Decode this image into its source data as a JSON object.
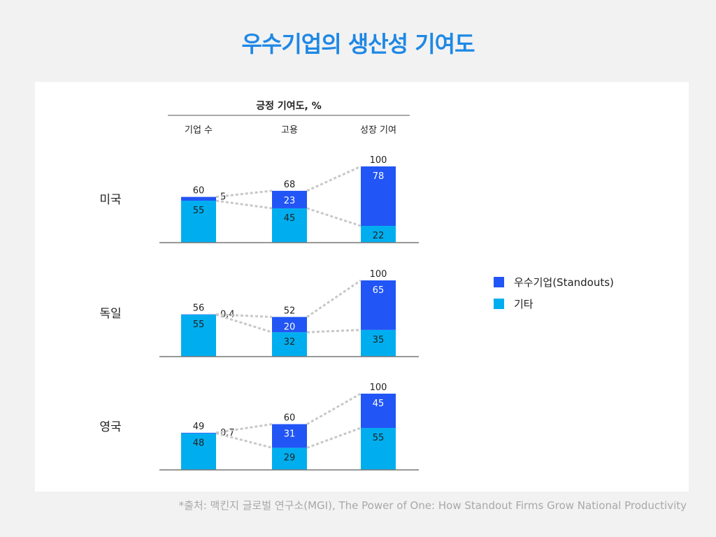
{
  "title": "우수기업의 생산성 기여도",
  "source": "*출처: 맥킨지 글로벌 연구소(MGI), The Power of One: How Standout Firms Grow National Productivity",
  "colors": {
    "standouts": "#2155f5",
    "others": "#00aeef",
    "connector": "#c8c8c8",
    "title": "#1e88e5"
  },
  "legend": [
    {
      "label": "우수기업(Standouts)",
      "color": "#2155f5"
    },
    {
      "label": "기타",
      "color": "#00aeef"
    }
  ],
  "chart_data": {
    "type": "bar",
    "stacked": true,
    "header": "긍정 기여도, %",
    "categories": [
      "기업 수",
      "고용",
      "성장 기여"
    ],
    "series_names": [
      "우수기업(Standouts)",
      "기타"
    ],
    "legend_position": "right",
    "groups": [
      {
        "label": "미국",
        "totals": [
          "60",
          "68",
          "100"
        ],
        "standouts": [
          5,
          23,
          78
        ],
        "standouts_labels": [
          "5",
          "23",
          "78"
        ],
        "others": [
          55,
          45,
          22
        ],
        "others_labels": [
          "55",
          "45",
          "22"
        ]
      },
      {
        "label": "독일",
        "totals": [
          "56",
          "52",
          "100"
        ],
        "standouts": [
          0.4,
          20,
          65
        ],
        "standouts_labels": [
          "0.4",
          "20",
          "65"
        ],
        "others": [
          55,
          32,
          35
        ],
        "others_labels": [
          "55",
          "32",
          "35"
        ]
      },
      {
        "label": "영국",
        "totals": [
          "49",
          "60",
          "100"
        ],
        "standouts": [
          0.7,
          31,
          45
        ],
        "standouts_labels": [
          "0.7",
          "31",
          "45"
        ],
        "others": [
          48,
          29,
          55
        ],
        "others_labels": [
          "48",
          "29",
          "55"
        ]
      }
    ]
  }
}
